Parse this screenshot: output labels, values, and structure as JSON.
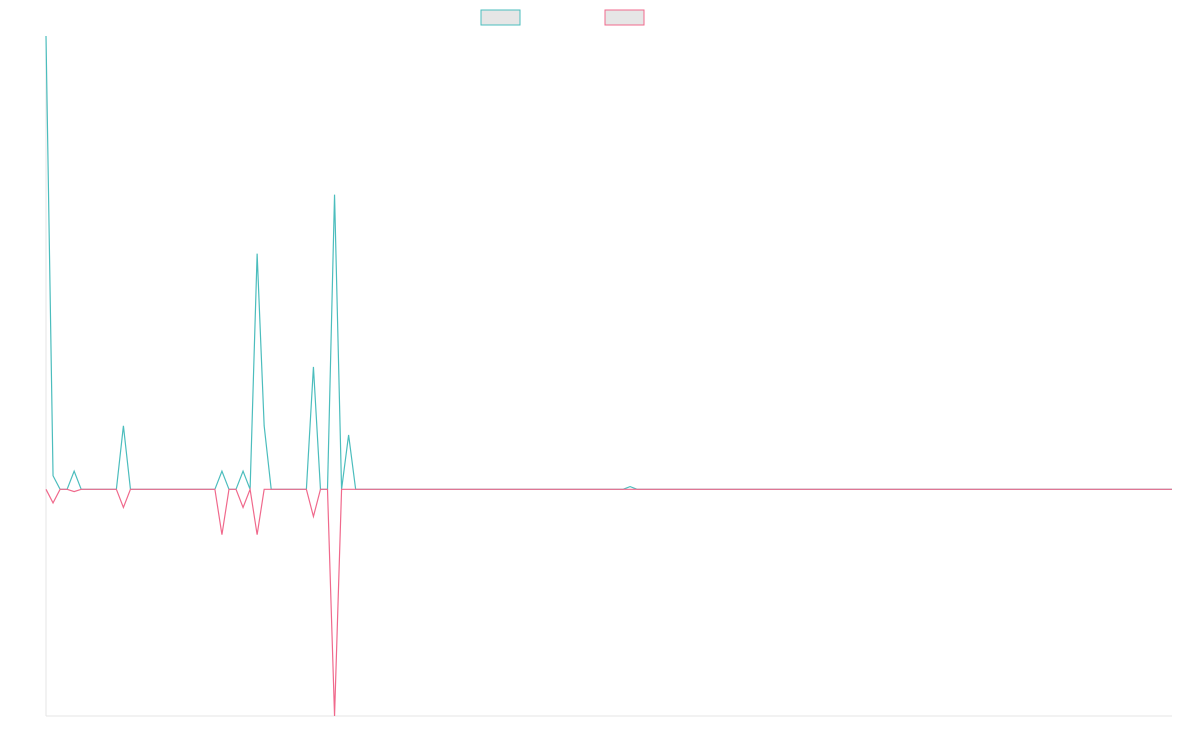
{
  "chart_data": {
    "type": "line",
    "title": "",
    "xlabel": "",
    "ylabel": "",
    "grid": false,
    "legend": "top-center",
    "axes_visible": false,
    "x_count": 161,
    "ylim": [
      -0.5,
      1.0
    ],
    "series": [
      {
        "color": "#4bbdbd",
        "points": [
          [
            0,
            1.0
          ],
          [
            1,
            0.03
          ],
          [
            2,
            0.0
          ],
          [
            3,
            0.0
          ],
          [
            4,
            0.04
          ],
          [
            5,
            0.0
          ],
          [
            10,
            0.0
          ],
          [
            11,
            0.14
          ],
          [
            12,
            0.0
          ],
          [
            24,
            0.0
          ],
          [
            25,
            0.04
          ],
          [
            26,
            0.0
          ],
          [
            27,
            0.0
          ],
          [
            28,
            0.04
          ],
          [
            29,
            0.0
          ],
          [
            30,
            0.52
          ],
          [
            31,
            0.14
          ],
          [
            32,
            0.0
          ],
          [
            33,
            0.0
          ],
          [
            34,
            0.0
          ],
          [
            35,
            0.0
          ],
          [
            36,
            0.0
          ],
          [
            37,
            0.0
          ],
          [
            38,
            0.27
          ],
          [
            39,
            0.0
          ],
          [
            40,
            0.0
          ],
          [
            41,
            0.65
          ],
          [
            42,
            0.0
          ],
          [
            43,
            0.12
          ],
          [
            44,
            0.0
          ],
          [
            50,
            0.0
          ],
          [
            60,
            0.0
          ],
          [
            70,
            0.0
          ],
          [
            82,
            0.0
          ],
          [
            83,
            0.006
          ],
          [
            84,
            0.0
          ],
          [
            100,
            0.0
          ],
          [
            120,
            0.0
          ],
          [
            140,
            0.0
          ],
          [
            160,
            0.0
          ]
        ]
      },
      {
        "color": "#f0698c",
        "points": [
          [
            0,
            0.0
          ],
          [
            1,
            -0.03
          ],
          [
            2,
            0.0
          ],
          [
            3,
            0.0
          ],
          [
            4,
            -0.005
          ],
          [
            5,
            0.0
          ],
          [
            10,
            0.0
          ],
          [
            11,
            -0.04
          ],
          [
            12,
            0.0
          ],
          [
            24,
            0.0
          ],
          [
            25,
            -0.1
          ],
          [
            26,
            0.0
          ],
          [
            27,
            0.0
          ],
          [
            28,
            -0.04
          ],
          [
            29,
            0.0
          ],
          [
            30,
            -0.1
          ],
          [
            31,
            0.0
          ],
          [
            32,
            0.0
          ],
          [
            33,
            0.0
          ],
          [
            34,
            0.0
          ],
          [
            35,
            0.0
          ],
          [
            36,
            0.0
          ],
          [
            37,
            0.0
          ],
          [
            38,
            -0.06
          ],
          [
            39,
            0.0
          ],
          [
            40,
            0.0
          ],
          [
            41,
            -0.5
          ],
          [
            42,
            0.0
          ],
          [
            43,
            0.0
          ],
          [
            44,
            0.0
          ],
          [
            50,
            0.0
          ],
          [
            60,
            0.0
          ],
          [
            70,
            0.0
          ],
          [
            82,
            0.0
          ],
          [
            83,
            0.0
          ],
          [
            84,
            0.0
          ],
          [
            100,
            0.0
          ],
          [
            120,
            0.0
          ],
          [
            140,
            0.0
          ],
          [
            160,
            0.0
          ]
        ]
      }
    ]
  }
}
